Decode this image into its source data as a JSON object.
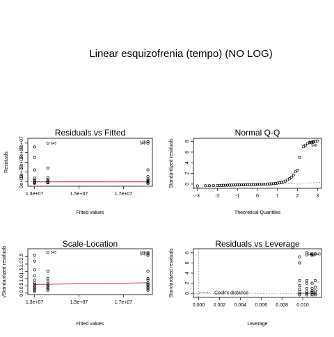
{
  "figure_title": "Linear esquizofrenia (tempo) (NO LOG)",
  "colors": {
    "smooth_line": "#cc3344",
    "reference_line": "#888888",
    "points": "#000000"
  },
  "chart_data": [
    {
      "type": "scatter",
      "title": "Residuals vs Fitted",
      "xlabel": "Fitted values",
      "ylabel": "Residuals",
      "xlim": [
        12700000,
        18300000
      ],
      "ylim": [
        -5000000,
        45000000
      ],
      "xticks": [
        13000000,
        15000000,
        17000000
      ],
      "xtick_labels": [
        "1.3e+07",
        "1.5e+07",
        "1.7e+07"
      ],
      "yticks": [
        0,
        10000000,
        20000000,
        30000000,
        40000000
      ],
      "ytick_labels": [
        "0e+00",
        "1e+07",
        "2e+07",
        "3e+07",
        "4e+07"
      ],
      "grid": false,
      "points": {
        "x": [
          13000000,
          13000000,
          13000000,
          13000000,
          13000000,
          13000000,
          13000000,
          13000000,
          13000000,
          13000000,
          13600000,
          13600000,
          13600000,
          13600000,
          13600000,
          13600000,
          13600000,
          13600000,
          18100000,
          18100000,
          18100000,
          18100000,
          18100000,
          18100000,
          18100000,
          18100000,
          18100000,
          18100000
        ],
        "y": [
          36000000,
          25000000,
          12000000,
          3500000,
          1500000,
          500000,
          -500000,
          -1000000,
          -1500000,
          -2000000,
          40000000,
          14000000,
          4000000,
          2000000,
          500000,
          -500000,
          -1000000,
          -1500000,
          41500000,
          40000000,
          12000000,
          5000000,
          2500000,
          1000000,
          0,
          -500000,
          -1000000,
          -2000000
        ]
      },
      "smooth": {
        "x": [
          13000000,
          18100000
        ],
        "y": [
          -500000,
          -500000
        ]
      },
      "reference_y": 0,
      "point_labels": [
        {
          "text": "545",
          "x": 13600000,
          "y": 40000000
        },
        {
          "text": "146",
          "x": 18100000,
          "y": 41500000
        },
        {
          "text": "548",
          "x": 18100000,
          "y": 40000000
        }
      ]
    },
    {
      "type": "scatter",
      "title": "Normal Q-Q",
      "xlabel": "Theoretical Quantiles",
      "ylabel": "Standardized residuals",
      "xlim": [
        -3.2,
        3.2
      ],
      "ylim": [
        -0.8,
        8.6
      ],
      "xticks": [
        -3,
        -2,
        -1,
        0,
        1,
        2,
        3
      ],
      "xtick_labels": [
        "-3",
        "-2",
        "-1",
        "0",
        "1",
        "2",
        "3"
      ],
      "yticks": [
        0,
        2,
        4,
        6,
        8
      ],
      "ytick_labels": [
        "0",
        "2",
        "4",
        "6",
        "8"
      ],
      "grid": false,
      "points": {
        "x": [
          -3.0,
          -2.6,
          -2.4,
          -2.2,
          -2.0,
          -1.9,
          -1.8,
          -1.7,
          -1.6,
          -1.5,
          -1.4,
          -1.3,
          -1.2,
          -1.1,
          -1.0,
          -0.9,
          -0.8,
          -0.7,
          -0.6,
          -0.5,
          -0.4,
          -0.3,
          -0.2,
          -0.1,
          0.0,
          0.1,
          0.2,
          0.3,
          0.4,
          0.5,
          0.6,
          0.7,
          0.8,
          0.9,
          1.0,
          1.1,
          1.2,
          1.3,
          1.4,
          1.5,
          1.6,
          1.7,
          1.8,
          1.9,
          2.0,
          2.1,
          2.3,
          2.4,
          2.5,
          2.6,
          2.7,
          2.8,
          2.9,
          3.0
        ],
        "y": [
          -0.35,
          -0.3,
          -0.3,
          -0.28,
          -0.27,
          -0.26,
          -0.25,
          -0.24,
          -0.23,
          -0.22,
          -0.21,
          -0.2,
          -0.19,
          -0.18,
          -0.17,
          -0.16,
          -0.15,
          -0.14,
          -0.13,
          -0.12,
          -0.11,
          -0.1,
          -0.09,
          -0.08,
          -0.07,
          -0.06,
          -0.05,
          -0.04,
          -0.02,
          0.0,
          0.02,
          0.05,
          0.08,
          0.12,
          0.16,
          0.22,
          0.3,
          0.4,
          0.55,
          0.75,
          1.0,
          1.3,
          1.7,
          2.3,
          2.6,
          5.0,
          7.0,
          7.3,
          7.6,
          7.8,
          7.8,
          7.9,
          8.0,
          8.1
        ]
      },
      "reference_line": {
        "x": [
          -3.2,
          3.2
        ],
        "y": [
          -0.6,
          0.3
        ]
      },
      "point_labels": [
        {
          "text": "146",
          "x": 2.95,
          "y": 8.0
        },
        {
          "text": "549",
          "x": 2.95,
          "y": 7.8
        },
        {
          "text": "548",
          "x": 2.55,
          "y": 7.3
        }
      ]
    },
    {
      "type": "scatter",
      "title": "Scale-Location",
      "xlabel": "Fitted values",
      "ylabel": "√Standardized residuals",
      "xlim": [
        12700000,
        18300000
      ],
      "ylim": [
        -0.1,
        3.05
      ],
      "xticks": [
        13000000,
        15000000,
        17000000
      ],
      "xtick_labels": [
        "1.3e+07",
        "1.5e+07",
        "1.7e+07"
      ],
      "yticks": [
        0.0,
        0.5,
        1.0,
        1.5,
        2.0,
        2.5
      ],
      "ytick_labels": [
        "0.0",
        "0.5",
        "1.0",
        "1.5",
        "2.0",
        "2.5"
      ],
      "grid": false,
      "points": {
        "x": [
          13000000,
          13000000,
          13000000,
          13000000,
          13000000,
          13000000,
          13000000,
          13000000,
          13000000,
          13000000,
          13000000,
          13000000,
          13600000,
          13600000,
          13600000,
          13600000,
          13600000,
          13600000,
          13600000,
          13600000,
          13600000,
          18100000,
          18100000,
          18100000,
          18100000,
          18100000,
          18100000,
          18100000,
          18100000,
          18100000,
          18100000,
          18100000,
          18100000
        ],
        "y": [
          2.6,
          2.2,
          1.6,
          1.2,
          0.9,
          0.7,
          0.6,
          0.5,
          0.4,
          0.3,
          0.2,
          0.1,
          2.8,
          1.5,
          1.0,
          0.8,
          0.6,
          0.5,
          0.4,
          0.3,
          0.2,
          2.8,
          2.7,
          2.6,
          1.5,
          1.0,
          0.9,
          0.7,
          0.6,
          0.5,
          0.4,
          0.3,
          0.2
        ]
      },
      "smooth": {
        "x": [
          13000000,
          14000000,
          16000000,
          18100000
        ],
        "y": [
          0.6,
          0.62,
          0.66,
          0.72
        ]
      },
      "point_labels": [
        {
          "text": "545",
          "x": 13600000,
          "y": 2.8
        },
        {
          "text": "146",
          "x": 18100000,
          "y": 2.8
        },
        {
          "text": "548",
          "x": 18100000,
          "y": 2.7
        }
      ]
    },
    {
      "type": "scatter",
      "title": "Residuals vs Leverage",
      "xlabel": "Leverage",
      "ylabel": "Standardized residuals",
      "xlim": [
        -0.0005,
        0.0118
      ],
      "ylim": [
        -0.8,
        8.8
      ],
      "xticks": [
        0.0,
        0.002,
        0.004,
        0.006,
        0.008,
        0.01
      ],
      "xtick_labels": [
        "0.000",
        "0.002",
        "0.004",
        "0.006",
        "0.008",
        "0.010"
      ],
      "yticks": [
        0,
        2,
        4,
        6,
        8
      ],
      "ytick_labels": [
        "0",
        "2",
        "4",
        "6",
        "8"
      ],
      "grid": false,
      "points": {
        "x": [
          0.0097,
          0.0097,
          0.0097,
          0.0097,
          0.0097,
          0.0097,
          0.0097,
          0.0097,
          0.0104,
          0.0104,
          0.0104,
          0.0104,
          0.0104,
          0.0104,
          0.0104,
          0.0104,
          0.0109,
          0.0109,
          0.0109,
          0.0109,
          0.0109,
          0.0109,
          0.0109,
          0.0109,
          0.0112,
          0.0112,
          0.0112,
          0.0112,
          0.0112,
          0.0112
        ],
        "y": [
          7.2,
          6.0,
          2.5,
          1.5,
          0.8,
          0.3,
          -0.1,
          -0.3,
          8.0,
          7.6,
          2.5,
          2.0,
          1.0,
          0.4,
          0.0,
          -0.3,
          7.8,
          7.5,
          2.0,
          1.0,
          0.5,
          0.2,
          -0.1,
          -0.3,
          7.8,
          2.5,
          1.2,
          0.5,
          0.0,
          -0.3
        ]
      },
      "smooth": {
        "x": [
          0.0097,
          0.0104,
          0.0112
        ],
        "y": [
          0.0,
          0.0,
          0.0
        ]
      },
      "reference_y": 0,
      "cooks_line_x": 0.0,
      "legend": "Cook's distance",
      "point_labels": [
        {
          "text": "146",
          "x": 0.0109,
          "y": 7.8
        },
        {
          "text": "548",
          "x": 0.0104,
          "y": 7.6
        },
        {
          "text": "549",
          "x": 0.0112,
          "y": 7.8
        }
      ]
    }
  ]
}
